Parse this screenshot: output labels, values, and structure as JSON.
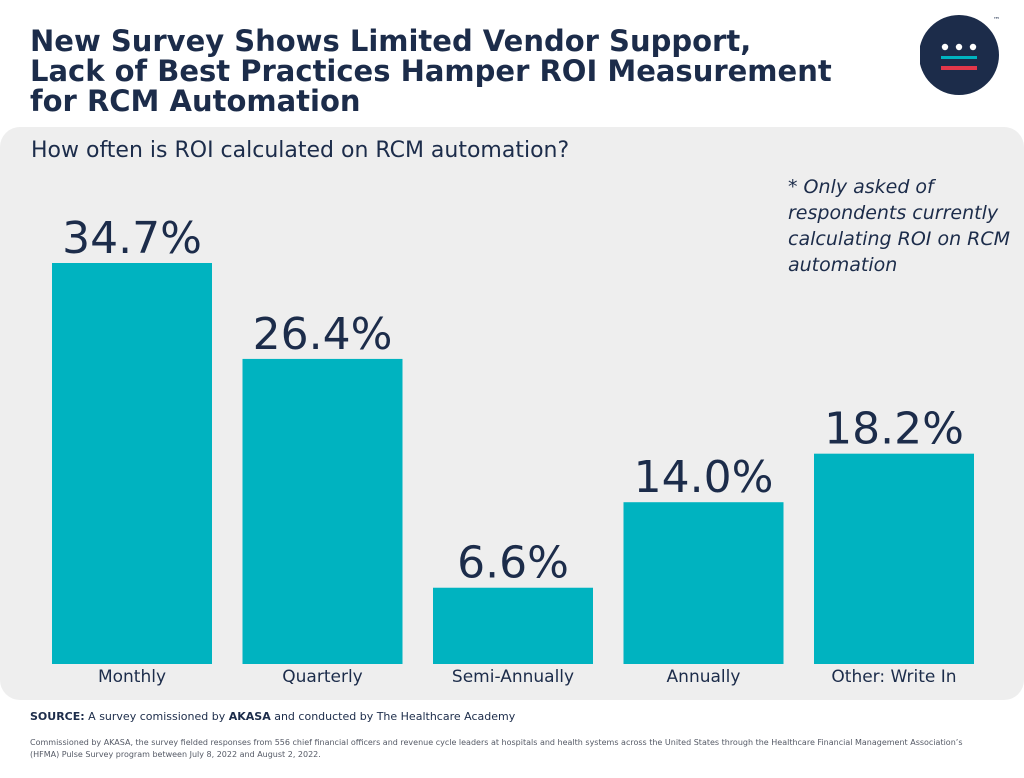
{
  "header": {
    "title_line1": "New Survey Shows Limited Vendor Support,",
    "title_line2": "Lack of Best Practices Hamper ROI Measurement",
    "title_line3": "for RCM Automation",
    "trademark": "™"
  },
  "colors": {
    "bar": "#00b3c0",
    "navy": "#1c2c4a",
    "accent": "#e2374a",
    "panel": "#eeeeee"
  },
  "footnote": "* Only asked of respondents currently calculating ROI on RCM automation",
  "chart_data": {
    "type": "bar",
    "title": "How often is ROI calculated on RCM automation?",
    "categories": [
      "Monthly",
      "Quarterly",
      "Semi-Annually",
      "Annually",
      "Other: Write In"
    ],
    "values": [
      34.7,
      26.4,
      6.6,
      14.0,
      18.2
    ],
    "value_labels": [
      "34.7%",
      "26.4%",
      "6.6%",
      "14.0%",
      "18.2%"
    ],
    "unit": "%",
    "xlabel": "",
    "ylabel": "",
    "ylim": [
      0,
      34.7
    ],
    "grid": false,
    "legend": "none"
  },
  "footer": {
    "source_label": "SOURCE:",
    "source_pre": "A survey comissioned by",
    "source_brand": "AKASA",
    "source_post": "and conducted by The Healthcare Academy",
    "note": "Commissioned by AKASA, the survey fielded responses from 556 chief financial officers and revenue cycle leaders at hospitals and health systems across the United States through the Healthcare Financial Management Association’s (HFMA) Pulse Survey program between July 8, 2022 and August 2, 2022."
  }
}
